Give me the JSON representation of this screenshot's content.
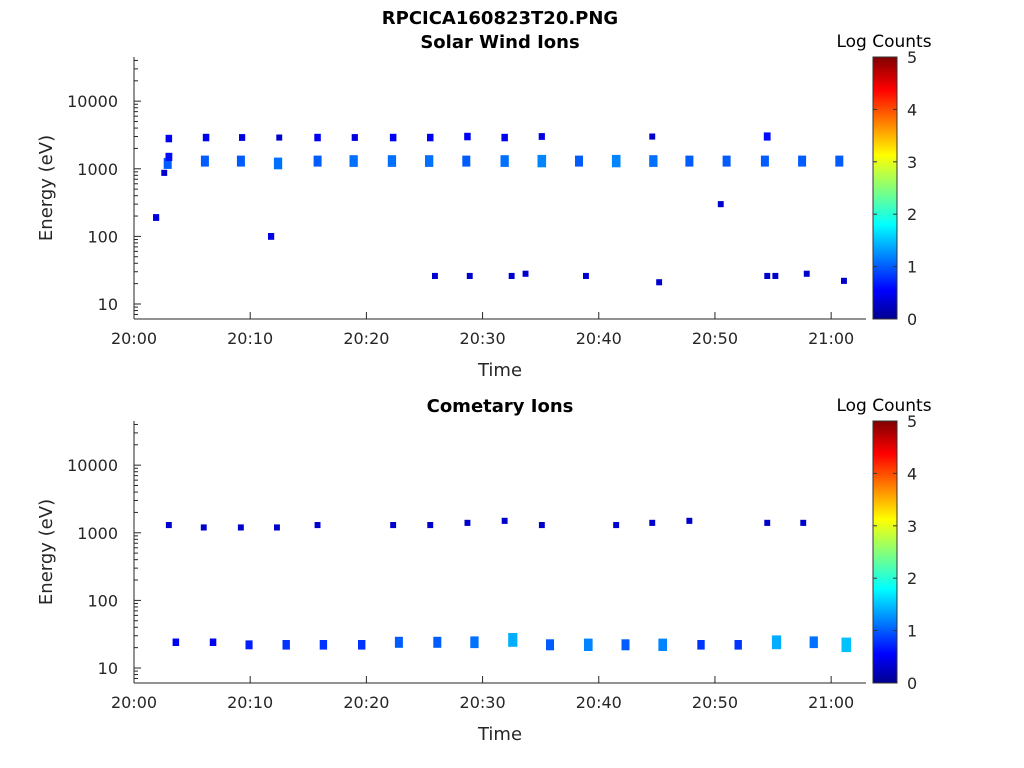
{
  "figure": {
    "title": "RPCICA160823T20.PNG"
  },
  "chart_data": [
    {
      "type": "heatmap",
      "title": "Solar Wind Ions",
      "xlabel": "Time",
      "ylabel": "Energy (eV)",
      "y_scale": "log",
      "x_range_minutes": [
        0,
        63
      ],
      "y_range_ev": [
        6,
        45000
      ],
      "x_ticks": [
        {
          "minutes": 0,
          "label": "20:00"
        },
        {
          "minutes": 10,
          "label": "20:10"
        },
        {
          "minutes": 20,
          "label": "20:20"
        },
        {
          "minutes": 30,
          "label": "20:30"
        },
        {
          "minutes": 40,
          "label": "20:40"
        },
        {
          "minutes": 50,
          "label": "20:50"
        },
        {
          "minutes": 60,
          "label": "21:00"
        }
      ],
      "y_ticks": [
        {
          "ev": 10,
          "label": "10"
        },
        {
          "ev": 100,
          "label": "100"
        },
        {
          "ev": 1000,
          "label": "1000"
        },
        {
          "ev": 10000,
          "label": "10000"
        }
      ],
      "colorbar": {
        "label": "Log Counts",
        "min": 0,
        "max": 5,
        "ticks": [
          "0",
          "1",
          "2",
          "3",
          "4",
          "5"
        ]
      },
      "points": [
        {
          "t": 2.9,
          "e": 1200,
          "v": 1.0
        },
        {
          "t": 3.0,
          "e": 1500,
          "v": 0.6
        },
        {
          "t": 3.0,
          "e": 2800,
          "v": 0.5
        },
        {
          "t": 2.6,
          "e": 870,
          "v": 0.3
        },
        {
          "t": 6.1,
          "e": 1300,
          "v": 1.0
        },
        {
          "t": 6.2,
          "e": 2900,
          "v": 0.5
        },
        {
          "t": 9.2,
          "e": 1300,
          "v": 1.0
        },
        {
          "t": 9.3,
          "e": 2900,
          "v": 0.4
        },
        {
          "t": 12.4,
          "e": 1200,
          "v": 1.1
        },
        {
          "t": 12.5,
          "e": 2900,
          "v": 0.3
        },
        {
          "t": 15.8,
          "e": 1300,
          "v": 1.0
        },
        {
          "t": 15.8,
          "e": 2900,
          "v": 0.5
        },
        {
          "t": 18.9,
          "e": 1300,
          "v": 1.1
        },
        {
          "t": 19.0,
          "e": 2900,
          "v": 0.4
        },
        {
          "t": 22.2,
          "e": 1300,
          "v": 1.1
        },
        {
          "t": 22.3,
          "e": 2900,
          "v": 0.5
        },
        {
          "t": 25.4,
          "e": 1300,
          "v": 1.1
        },
        {
          "t": 25.5,
          "e": 2900,
          "v": 0.5
        },
        {
          "t": 28.6,
          "e": 1300,
          "v": 1.0
        },
        {
          "t": 28.7,
          "e": 3000,
          "v": 0.5
        },
        {
          "t": 31.9,
          "e": 1300,
          "v": 1.1
        },
        {
          "t": 31.9,
          "e": 2900,
          "v": 0.5
        },
        {
          "t": 35.1,
          "e": 1300,
          "v": 1.2
        },
        {
          "t": 35.1,
          "e": 3000,
          "v": 0.4
        },
        {
          "t": 38.3,
          "e": 1300,
          "v": 1.0
        },
        {
          "t": 41.5,
          "e": 1300,
          "v": 1.2
        },
        {
          "t": 44.7,
          "e": 1300,
          "v": 1.1
        },
        {
          "t": 44.6,
          "e": 3000,
          "v": 0.3
        },
        {
          "t": 47.8,
          "e": 1300,
          "v": 1.0
        },
        {
          "t": 51.0,
          "e": 1300,
          "v": 1.0
        },
        {
          "t": 54.3,
          "e": 1300,
          "v": 1.0
        },
        {
          "t": 54.5,
          "e": 3000,
          "v": 0.6
        },
        {
          "t": 57.5,
          "e": 1300,
          "v": 1.0
        },
        {
          "t": 60.7,
          "e": 1300,
          "v": 1.0
        },
        {
          "t": 1.9,
          "e": 190,
          "v": 0.4
        },
        {
          "t": 11.8,
          "e": 100,
          "v": 0.4
        },
        {
          "t": 50.5,
          "e": 300,
          "v": 0.3
        },
        {
          "t": 25.9,
          "e": 26,
          "v": 0.3
        },
        {
          "t": 28.9,
          "e": 26,
          "v": 0.3
        },
        {
          "t": 32.5,
          "e": 26,
          "v": 0.3
        },
        {
          "t": 33.7,
          "e": 28,
          "v": 0.3
        },
        {
          "t": 38.9,
          "e": 26,
          "v": 0.3
        },
        {
          "t": 45.2,
          "e": 21,
          "v": 0.3
        },
        {
          "t": 54.5,
          "e": 26,
          "v": 0.3
        },
        {
          "t": 55.2,
          "e": 26,
          "v": 0.3
        },
        {
          "t": 57.9,
          "e": 28,
          "v": 0.3
        },
        {
          "t": 61.1,
          "e": 22,
          "v": 0.3
        }
      ]
    },
    {
      "type": "heatmap",
      "title": "Cometary Ions",
      "xlabel": "Time",
      "ylabel": "Energy (eV)",
      "y_scale": "log",
      "x_range_minutes": [
        0,
        63
      ],
      "y_range_ev": [
        6,
        45000
      ],
      "x_ticks": [
        {
          "minutes": 0,
          "label": "20:00"
        },
        {
          "minutes": 10,
          "label": "20:10"
        },
        {
          "minutes": 20,
          "label": "20:20"
        },
        {
          "minutes": 30,
          "label": "20:30"
        },
        {
          "minutes": 40,
          "label": "20:40"
        },
        {
          "minutes": 50,
          "label": "20:50"
        },
        {
          "minutes": 60,
          "label": "21:00"
        }
      ],
      "y_ticks": [
        {
          "ev": 10,
          "label": "10"
        },
        {
          "ev": 100,
          "label": "100"
        },
        {
          "ev": 1000,
          "label": "1000"
        },
        {
          "ev": 10000,
          "label": "10000"
        }
      ],
      "colorbar": {
        "label": "Log Counts",
        "min": 0,
        "max": 5,
        "ticks": [
          "0",
          "1",
          "2",
          "3",
          "4",
          "5"
        ]
      },
      "points": [
        {
          "t": 3.0,
          "e": 1300,
          "v": 0.3
        },
        {
          "t": 6.0,
          "e": 1200,
          "v": 0.3
        },
        {
          "t": 9.2,
          "e": 1200,
          "v": 0.3
        },
        {
          "t": 12.3,
          "e": 1200,
          "v": 0.3
        },
        {
          "t": 15.8,
          "e": 1300,
          "v": 0.3
        },
        {
          "t": 22.3,
          "e": 1300,
          "v": 0.3
        },
        {
          "t": 25.5,
          "e": 1300,
          "v": 0.3
        },
        {
          "t": 28.7,
          "e": 1400,
          "v": 0.3
        },
        {
          "t": 31.9,
          "e": 1500,
          "v": 0.3
        },
        {
          "t": 35.1,
          "e": 1300,
          "v": 0.3
        },
        {
          "t": 41.5,
          "e": 1300,
          "v": 0.3
        },
        {
          "t": 44.6,
          "e": 1400,
          "v": 0.3
        },
        {
          "t": 47.8,
          "e": 1500,
          "v": 0.3
        },
        {
          "t": 54.5,
          "e": 1400,
          "v": 0.3
        },
        {
          "t": 57.6,
          "e": 1400,
          "v": 0.3
        },
        {
          "t": 3.6,
          "e": 24,
          "v": 0.5
        },
        {
          "t": 6.8,
          "e": 24,
          "v": 0.5
        },
        {
          "t": 9.9,
          "e": 22,
          "v": 0.7
        },
        {
          "t": 13.1,
          "e": 22,
          "v": 0.8
        },
        {
          "t": 16.3,
          "e": 22,
          "v": 0.8
        },
        {
          "t": 19.6,
          "e": 22,
          "v": 0.8
        },
        {
          "t": 22.8,
          "e": 24,
          "v": 1.0
        },
        {
          "t": 26.1,
          "e": 24,
          "v": 1.0
        },
        {
          "t": 29.3,
          "e": 24,
          "v": 1.1
        },
        {
          "t": 32.6,
          "e": 26,
          "v": 1.4
        },
        {
          "t": 35.8,
          "e": 22,
          "v": 1.0
        },
        {
          "t": 39.1,
          "e": 22,
          "v": 1.2
        },
        {
          "t": 42.3,
          "e": 22,
          "v": 1.0
        },
        {
          "t": 45.5,
          "e": 22,
          "v": 1.2
        },
        {
          "t": 48.8,
          "e": 22,
          "v": 0.8
        },
        {
          "t": 52.0,
          "e": 22,
          "v": 0.8
        },
        {
          "t": 55.3,
          "e": 24,
          "v": 1.4
        },
        {
          "t": 58.5,
          "e": 24,
          "v": 1.1
        },
        {
          "t": 61.3,
          "e": 22,
          "v": 1.5
        }
      ]
    }
  ]
}
